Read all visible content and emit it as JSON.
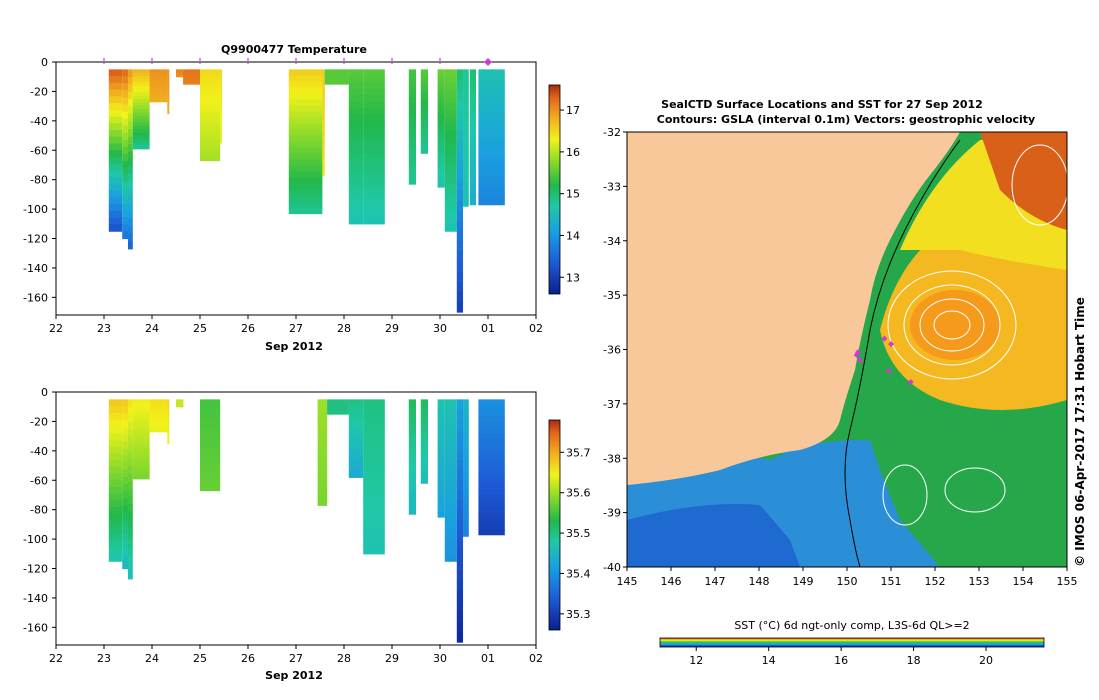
{
  "chart_data": [
    {
      "type": "heatmap",
      "title": "Q9900477  Temperature",
      "xlabel": "Sep 2012",
      "ylabel": "",
      "x_ticks": [
        "22",
        "23",
        "24",
        "25",
        "26",
        "27",
        "28",
        "29",
        "30",
        "01",
        "02"
      ],
      "xlim": [
        22,
        32
      ],
      "y_ticks": [
        0,
        -20,
        -40,
        -60,
        -80,
        -100,
        -120,
        -140,
        -160
      ],
      "ylim": [
        -172,
        0
      ],
      "colorbar": {
        "ticks": [
          13,
          14,
          15,
          16,
          17
        ],
        "range": [
          12.6,
          17.6
        ]
      },
      "profile_markers_day": [
        23,
        24,
        25,
        26,
        27,
        28,
        29,
        30,
        31
      ],
      "highlighted_marker_day": 31,
      "profiles": [
        {
          "x_start": 23.1,
          "x_end": 23.38,
          "depth_top": -5,
          "depth_bottom": -115,
          "value_top": 17.4,
          "value_bottom": 13.2
        },
        {
          "x_start": 23.38,
          "x_end": 23.5,
          "depth_top": -5,
          "depth_bottom": -120,
          "value_top": 17.3,
          "value_bottom": 13.6
        },
        {
          "x_start": 23.5,
          "x_end": 23.6,
          "depth_top": -5,
          "depth_bottom": -127,
          "value_top": 17.0,
          "value_bottom": 13.4
        },
        {
          "x_start": 23.6,
          "x_end": 23.95,
          "depth_top": -5,
          "depth_bottom": -59,
          "value_top": 16.8,
          "value_bottom": 14.8
        },
        {
          "x_start": 23.95,
          "x_end": 24.32,
          "depth_top": -5,
          "depth_bottom": -27,
          "value_top": 17.0,
          "value_bottom": 16.8
        },
        {
          "x_start": 24.32,
          "x_end": 24.36,
          "depth_top": -5,
          "depth_bottom": -35,
          "value_top": 17.0,
          "value_bottom": 16.8
        },
        {
          "x_start": 24.5,
          "x_end": 24.65,
          "depth_top": -5,
          "depth_bottom": -10,
          "value_top": 17.1,
          "value_bottom": 17.0
        },
        {
          "x_start": 24.65,
          "x_end": 25.0,
          "depth_top": -5,
          "depth_bottom": -15,
          "value_top": 17.2,
          "value_bottom": 17.1
        },
        {
          "x_start": 25.0,
          "x_end": 25.42,
          "depth_top": -5,
          "depth_bottom": -67,
          "value_top": 16.5,
          "value_bottom": 15.9
        },
        {
          "x_start": 25.42,
          "x_end": 25.46,
          "depth_top": -5,
          "depth_bottom": -55,
          "value_top": 16.5,
          "value_bottom": 16.2
        },
        {
          "x_start": 26.85,
          "x_end": 27.55,
          "depth_top": -5,
          "depth_bottom": -103,
          "value_top": 16.6,
          "value_bottom": 14.8
        },
        {
          "x_start": 27.55,
          "x_end": 27.6,
          "depth_top": -5,
          "depth_bottom": -77,
          "value_top": 16.6,
          "value_bottom": 16.4
        },
        {
          "x_start": 27.6,
          "x_end": 28.1,
          "depth_top": -5,
          "depth_bottom": -15,
          "value_top": 15.5,
          "value_bottom": 15.5
        },
        {
          "x_start": 28.1,
          "x_end": 28.4,
          "depth_top": -5,
          "depth_bottom": -110,
          "value_top": 15.5,
          "value_bottom": 14.6
        },
        {
          "x_start": 28.4,
          "x_end": 28.85,
          "depth_top": -5,
          "depth_bottom": -110,
          "value_top": 15.5,
          "value_bottom": 14.6
        },
        {
          "x_start": 29.35,
          "x_end": 29.5,
          "depth_top": -5,
          "depth_bottom": -83,
          "value_top": 15.4,
          "value_bottom": 14.8
        },
        {
          "x_start": 29.6,
          "x_end": 29.75,
          "depth_top": -5,
          "depth_bottom": -62,
          "value_top": 15.5,
          "value_bottom": 14.8
        },
        {
          "x_start": 29.95,
          "x_end": 30.1,
          "depth_top": -5,
          "depth_bottom": -85,
          "value_top": 15.6,
          "value_bottom": 14.6
        },
        {
          "x_start": 30.1,
          "x_end": 30.35,
          "depth_top": -5,
          "depth_bottom": -115,
          "value_top": 15.6,
          "value_bottom": 14.6
        },
        {
          "x_start": 30.35,
          "x_end": 30.48,
          "depth_top": -5,
          "depth_bottom": -170,
          "value_top": 15.0,
          "value_bottom": 13.0
        },
        {
          "x_start": 30.48,
          "x_end": 30.6,
          "depth_top": -5,
          "depth_bottom": -98,
          "value_top": 14.8,
          "value_bottom": 14.6
        },
        {
          "x_start": 30.62,
          "x_end": 30.75,
          "depth_top": -5,
          "depth_bottom": -97,
          "value_top": 15.0,
          "value_bottom": 14.3
        },
        {
          "x_start": 30.8,
          "x_end": 31.35,
          "depth_top": -5,
          "depth_bottom": -97,
          "value_top": 14.6,
          "value_bottom": 13.8
        }
      ]
    },
    {
      "type": "heatmap",
      "title": "",
      "xlabel": "Sep 2012",
      "ylabel": "",
      "x_ticks": [
        "22",
        "23",
        "24",
        "25",
        "26",
        "27",
        "28",
        "29",
        "30",
        "01",
        "02"
      ],
      "xlim": [
        22,
        32
      ],
      "y_ticks": [
        0,
        -20,
        -40,
        -60,
        -80,
        -100,
        -120,
        -140,
        -160
      ],
      "ylim": [
        -172,
        0
      ],
      "colorbar": {
        "ticks": [
          35.3,
          35.4,
          35.5,
          35.6,
          35.7
        ],
        "range": [
          35.26,
          35.78
        ]
      },
      "profiles": [
        {
          "x_start": 23.1,
          "x_end": 23.38,
          "depth_top": -5,
          "depth_bottom": -115,
          "value_top": 35.68,
          "value_bottom": 35.47
        },
        {
          "x_start": 23.38,
          "x_end": 23.5,
          "depth_top": -5,
          "depth_bottom": -120,
          "value_top": 35.68,
          "value_bottom": 35.45
        },
        {
          "x_start": 23.5,
          "x_end": 23.6,
          "depth_top": -5,
          "depth_bottom": -127,
          "value_top": 35.66,
          "value_bottom": 35.46
        },
        {
          "x_start": 23.6,
          "x_end": 23.95,
          "depth_top": -5,
          "depth_bottom": -59,
          "value_top": 35.65,
          "value_bottom": 35.58
        },
        {
          "x_start": 23.95,
          "x_end": 24.32,
          "depth_top": -5,
          "depth_bottom": -27,
          "value_top": 35.66,
          "value_bottom": 35.64
        },
        {
          "x_start": 24.32,
          "x_end": 24.36,
          "depth_top": -5,
          "depth_bottom": -35,
          "value_top": 35.67,
          "value_bottom": 35.64
        },
        {
          "x_start": 24.5,
          "x_end": 24.65,
          "depth_top": -5,
          "depth_bottom": -10,
          "value_top": 35.62,
          "value_bottom": 35.62
        },
        {
          "x_start": 25.0,
          "x_end": 25.42,
          "depth_top": -5,
          "depth_bottom": -67,
          "value_top": 35.55,
          "value_bottom": 35.57
        },
        {
          "x_start": 27.45,
          "x_end": 27.65,
          "depth_top": -5,
          "depth_bottom": -77,
          "value_top": 35.6,
          "value_bottom": 35.58
        },
        {
          "x_start": 27.65,
          "x_end": 28.1,
          "depth_top": -5,
          "depth_bottom": -15,
          "value_top": 35.5,
          "value_bottom": 35.5
        },
        {
          "x_start": 28.1,
          "x_end": 28.4,
          "depth_top": -5,
          "depth_bottom": -58,
          "value_top": 35.5,
          "value_bottom": 35.43
        },
        {
          "x_start": 28.4,
          "x_end": 28.85,
          "depth_top": -5,
          "depth_bottom": -110,
          "value_top": 35.5,
          "value_bottom": 35.47
        },
        {
          "x_start": 29.35,
          "x_end": 29.5,
          "depth_top": -5,
          "depth_bottom": -83,
          "value_top": 35.52,
          "value_bottom": 35.45
        },
        {
          "x_start": 29.6,
          "x_end": 29.75,
          "depth_top": -5,
          "depth_bottom": -62,
          "value_top": 35.52,
          "value_bottom": 35.46
        },
        {
          "x_start": 29.95,
          "x_end": 30.1,
          "depth_top": -5,
          "depth_bottom": -85,
          "value_top": 35.47,
          "value_bottom": 35.42
        },
        {
          "x_start": 30.1,
          "x_end": 30.35,
          "depth_top": -5,
          "depth_bottom": -115,
          "value_top": 35.47,
          "value_bottom": 35.4
        },
        {
          "x_start": 30.35,
          "x_end": 30.48,
          "depth_top": -5,
          "depth_bottom": -170,
          "value_top": 35.42,
          "value_bottom": 35.27
        },
        {
          "x_start": 30.48,
          "x_end": 30.6,
          "depth_top": -5,
          "depth_bottom": -98,
          "value_top": 35.45,
          "value_bottom": 35.38
        },
        {
          "x_start": 30.8,
          "x_end": 31.35,
          "depth_top": -5,
          "depth_bottom": -97,
          "value_top": 35.4,
          "value_bottom": 35.3
        }
      ]
    },
    {
      "type": "heatmap",
      "title": "SealCTD Surface Locations and SST for 27 Sep 2012",
      "subtitle": "Contours: GSLA (interval 0.1m) Vectors: geostrophic velocity",
      "xlabel": "",
      "ylabel": "",
      "x_ticks": [
        145,
        146,
        147,
        148,
        149,
        150,
        151,
        152,
        153,
        154,
        155
      ],
      "y_ticks": [
        -32,
        -33,
        -34,
        -35,
        -36,
        -37,
        -38,
        -39,
        -40
      ],
      "xlim": [
        145,
        155
      ],
      "ylim": [
        -40,
        -32
      ],
      "colorbar": {
        "label": "SST (°C) 6d ngt-only comp, L3S-6d QL>=2",
        "ticks": [
          12,
          14,
          16,
          18,
          20
        ],
        "range": [
          11.0,
          21.6
        ]
      },
      "land_color": "#f9c89a",
      "seal_locations": [
        {
          "lon": 150.25,
          "lat": -36.05
        },
        {
          "lon": 150.3,
          "lat": -36.2
        },
        {
          "lon": 150.22,
          "lat": -36.1
        },
        {
          "lon": 150.85,
          "lat": -35.8
        },
        {
          "lon": 151.0,
          "lat": -35.9
        },
        {
          "lon": 150.95,
          "lat": -36.4
        },
        {
          "lon": 151.45,
          "lat": -36.6
        }
      ],
      "credit": "© IMOS 06-Apr-2017 17:31 Hobart Time"
    }
  ]
}
